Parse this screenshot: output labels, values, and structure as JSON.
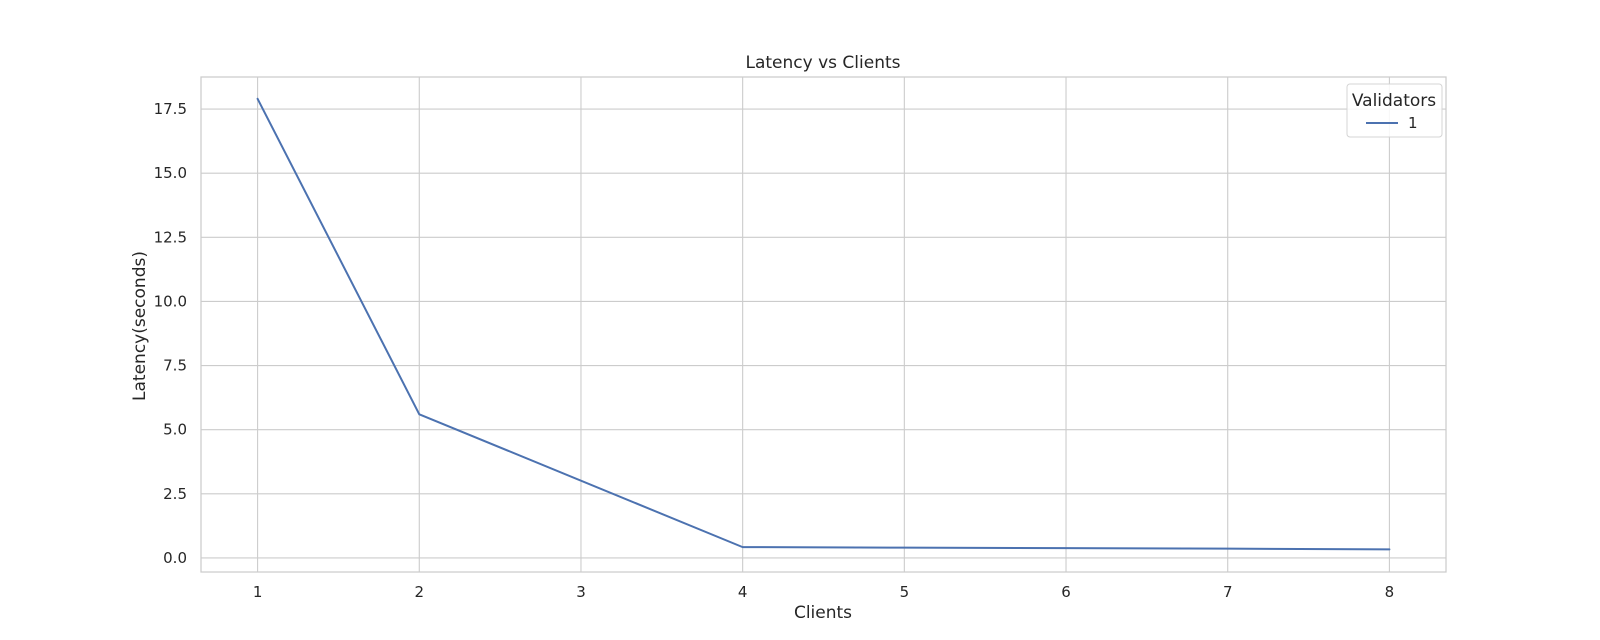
{
  "chart_data": {
    "type": "line",
    "title": "Latency vs Clients",
    "xlabel": "Clients",
    "ylabel": "Latency(seconds)",
    "categories": [
      "1",
      "2",
      "3",
      "4",
      "5",
      "6",
      "7",
      "8"
    ],
    "x": [
      1,
      2,
      4,
      5,
      6,
      7,
      8
    ],
    "series": [
      {
        "name": "1",
        "values": [
          17.9,
          5.6,
          0.42,
          0.4,
          0.38,
          0.36,
          0.33
        ],
        "color": "#4c72b0"
      }
    ],
    "ylim": [
      -0.55,
      18.75
    ],
    "yticks": [
      0.0,
      2.5,
      5.0,
      7.5,
      10.0,
      12.5,
      15.0,
      17.5
    ],
    "ytick_labels": [
      "0.0",
      "2.5",
      "5.0",
      "7.5",
      "10.0",
      "12.5",
      "15.0",
      "17.5"
    ],
    "grid": true,
    "legend": {
      "title": "Validators",
      "placement": "top-right"
    }
  }
}
